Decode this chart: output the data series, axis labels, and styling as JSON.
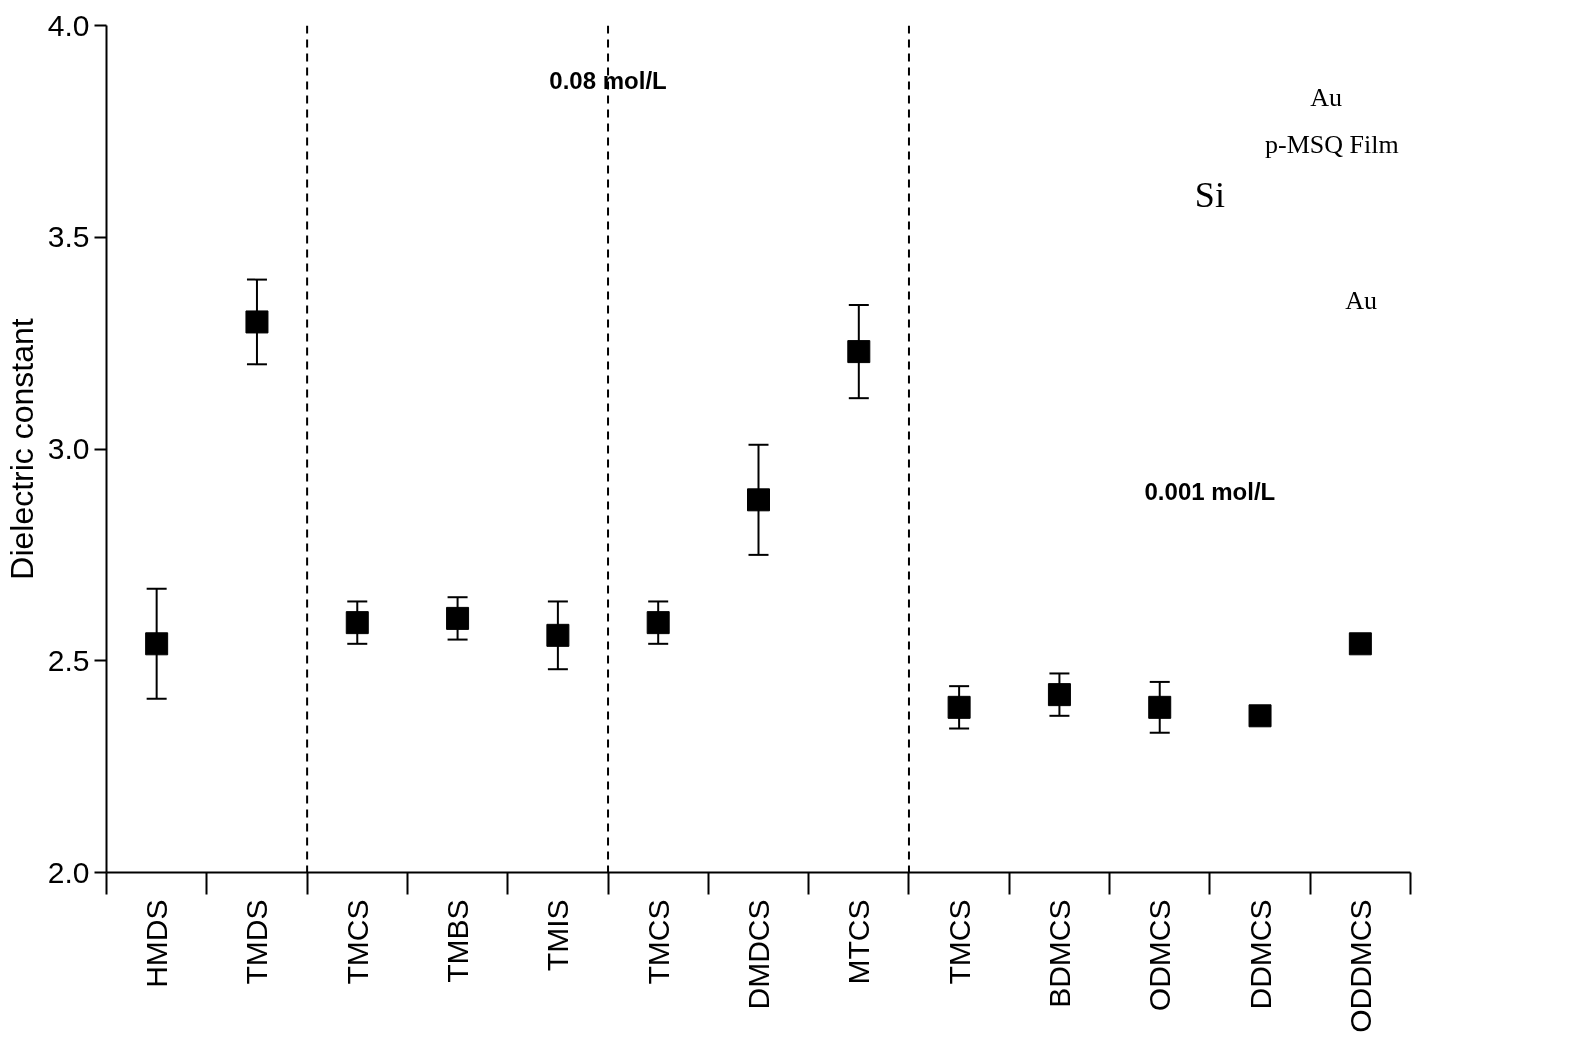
{
  "chart_data": {
    "type": "scatter",
    "ylabel": "Dielectric constant",
    "categories": [
      "HMDS",
      "TMDS",
      "TMCS",
      "TMBS",
      "TMIS",
      "TMCS",
      "DMDCS",
      "MTCS",
      "TMCS",
      "BDMCS",
      "ODMCS",
      "DDMCS",
      "ODDMCS"
    ],
    "values": [
      2.54,
      3.3,
      2.59,
      2.6,
      2.56,
      2.59,
      2.88,
      3.23,
      2.39,
      2.42,
      2.39,
      2.37,
      2.54
    ],
    "errors": [
      0.13,
      0.1,
      0.05,
      0.05,
      0.08,
      0.05,
      0.13,
      0.11,
      0.05,
      0.05,
      0.06,
      null,
      null
    ],
    "color": "#000000",
    "marker": "square",
    "ylim": [
      2.0,
      4.0
    ],
    "yticks": [
      {
        "value": 2.0,
        "label": "2.0"
      },
      {
        "value": 2.5,
        "label": "2.5"
      },
      {
        "value": 3.0,
        "label": "3.0"
      },
      {
        "value": 3.5,
        "label": "3.5"
      },
      {
        "value": 4.0,
        "label": "4.0"
      }
    ],
    "annotations": [
      "0.08 mol/L",
      "0.001 mol/L",
      "Au",
      "p-MSQ Film",
      "Si",
      "Au"
    ],
    "grid": false
  }
}
